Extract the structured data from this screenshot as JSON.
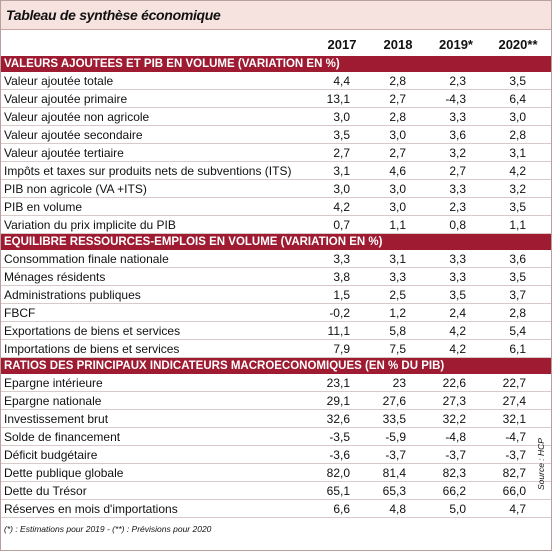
{
  "title": "Tableau de synthèse économique",
  "columns": [
    "2017",
    "2018",
    "2019*",
    "2020**"
  ],
  "sections": [
    {
      "title": "VALEURS AJOUTEES ET PIB EN VOLUME (VARIATION EN %)",
      "rows": [
        [
          "Valeur ajoutée totale",
          "4,4",
          "2,8",
          "2,3",
          "3,5"
        ],
        [
          "Valeur ajoutée primaire",
          "13,1",
          "2,7",
          "-4,3",
          "6,4"
        ],
        [
          "Valeur ajoutée non agricole",
          "3,0",
          "2,8",
          "3,3",
          "3,0"
        ],
        [
          "Valeur ajoutée secondaire",
          "3,5",
          "3,0",
          "3,6",
          "2,8"
        ],
        [
          "Valeur ajoutée tertiaire",
          "2,7",
          "2,7",
          "3,2",
          "3,1"
        ],
        [
          "Impôts et taxes sur produits nets de subventions (ITS)",
          "3,1",
          "4,6",
          "2,7",
          "4,2"
        ],
        [
          "PIB non agricole (VA +ITS)",
          "3,0",
          "3,0",
          "3,3",
          "3,2"
        ],
        [
          "PIB en volume",
          "4,2",
          "3,0",
          "2,3",
          "3,5"
        ],
        [
          "Variation du prix implicite du PIB",
          "0,7",
          "1,1",
          "0,8",
          "1,1"
        ]
      ]
    },
    {
      "title": "EQUILIBRE RESSOURCES-EMPLOIS EN VOLUME (VARIATION EN %)",
      "rows": [
        [
          "Consommation finale nationale",
          "3,3",
          "3,1",
          "3,3",
          "3,6"
        ],
        [
          "Ménages résidents",
          "3,8",
          "3,3",
          "3,3",
          "3,5"
        ],
        [
          "Administrations publiques",
          "1,5",
          "2,5",
          "3,5",
          "3,7"
        ],
        [
          "FBCF",
          "-0,2",
          "1,2",
          "2,4",
          "2,8"
        ],
        [
          "Exportations de biens et services",
          "11,1",
          "5,8",
          "4,2",
          "5,4"
        ],
        [
          "Importations de biens et services",
          "7,9",
          "7,5",
          "4,2",
          "6,1"
        ]
      ]
    },
    {
      "title": "RATIOS DES PRINCIPAUX INDICATEURS MACROECONOMIQUES (EN % DU PIB)",
      "rows": [
        [
          "Epargne intérieure",
          "23,1",
          "23",
          "22,6",
          "22,7"
        ],
        [
          "Epargne nationale",
          "29,1",
          "27,6",
          "27,3",
          "27,4"
        ],
        [
          "Investissement brut",
          "32,6",
          "33,5",
          "32,2",
          "32,1"
        ],
        [
          "Solde de financement",
          "-3,5",
          "-5,9",
          "-4,8",
          "-4,7"
        ],
        [
          "Déficit budgétaire",
          "-3,6",
          "-3,7",
          "-3,7",
          "-3,7"
        ],
        [
          "Dette publique globale",
          "82,0",
          "81,4",
          "82,3",
          "82,7"
        ],
        [
          "Dette du Trésor",
          "65,1",
          "65,3",
          "66,2",
          "66,0"
        ],
        [
          "Réserves en mois d'importations",
          "6,6",
          "4,8",
          "5,0",
          "4,7"
        ]
      ]
    }
  ],
  "footnote": "(*) : Estimations pour 2019 - (**) : Prévisions pour 2020",
  "source": "Source : HCP"
}
